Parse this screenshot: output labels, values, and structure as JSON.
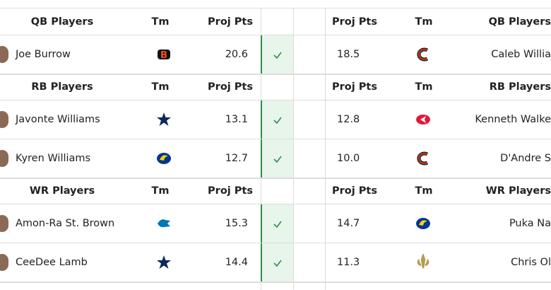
{
  "sections": [
    {
      "left_header": {
        "players": "QB Players",
        "team": "Tm",
        "proj": "Proj Pts"
      },
      "right_header": {
        "proj": "Proj Pts",
        "team": "Tm",
        "players": "QB Players"
      },
      "rows": [
        {
          "left": {
            "player": "Joe Burrow",
            "proj": "20.6"
          },
          "right": {
            "proj": "18.5",
            "player": "Caleb Willia"
          }
        }
      ]
    },
    {
      "left_header": {
        "players": "RB Players",
        "team": "Tm",
        "proj": "Proj Pts"
      },
      "right_header": {
        "proj": "Proj Pts",
        "team": "Tm",
        "players": "RB Players"
      },
      "rows": [
        {
          "left": {
            "player": "Javonte Williams",
            "proj": "13.1"
          },
          "right": {
            "proj": "12.8",
            "player": "Kenneth Walke"
          }
        },
        {
          "left": {
            "player": "Kyren Williams",
            "proj": "12.7"
          },
          "right": {
            "proj": "10.0",
            "player": "D'Andre S"
          }
        }
      ]
    },
    {
      "left_header": {
        "players": "WR Players",
        "team": "Tm",
        "proj": "Proj Pts"
      },
      "right_header": {
        "proj": "Proj Pts",
        "team": "Tm",
        "players": "WR Players"
      },
      "rows": [
        {
          "left": {
            "player": "Amon-Ra St. Brown",
            "proj": "15.3"
          },
          "right": {
            "proj": "14.7",
            "player": "Puka Na"
          }
        },
        {
          "left": {
            "player": "CeeDee Lamb",
            "proj": "14.4"
          },
          "right": {
            "proj": "11.3",
            "player": "Chris Ol"
          }
        }
      ]
    }
  ]
}
